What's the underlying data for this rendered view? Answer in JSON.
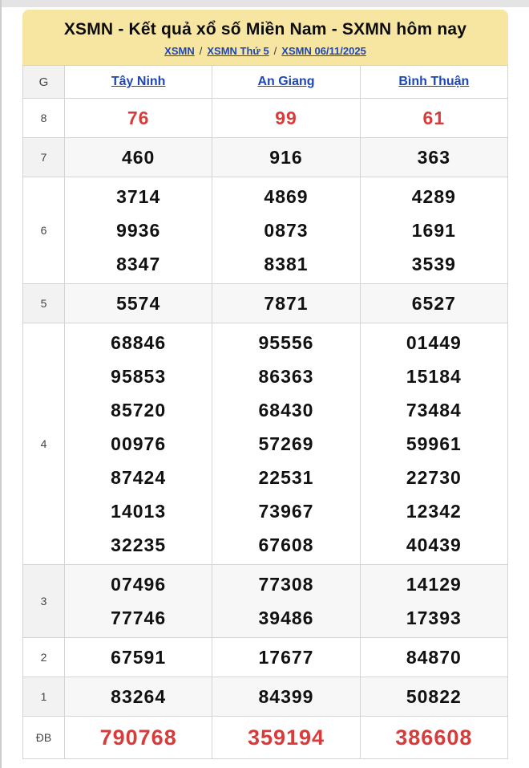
{
  "header": {
    "title": "XSMN - Kết quả xổ số Miền Nam - SXMN hôm nay",
    "breadcrumb": {
      "separator": "/",
      "items": [
        {
          "label": "XSMN"
        },
        {
          "label": "XSMN Thứ 5"
        },
        {
          "label": "XSMN 06/11/2025"
        }
      ]
    }
  },
  "colors": {
    "header_bg": "#f7e6a2",
    "link_blue": "#1e46b4",
    "red": "#d93b3b",
    "border": "#d4d4d4",
    "g_col_bg": "#f2f2f2",
    "row_alt_bg": "#f7f7f7"
  },
  "table": {
    "corner_label": "G",
    "columns": [
      "Tây Ninh",
      "An Giang",
      "Bình Thuận"
    ],
    "rows": [
      {
        "prize": "8",
        "highlight": "red",
        "values": [
          [
            "76"
          ],
          [
            "99"
          ],
          [
            "61"
          ]
        ]
      },
      {
        "prize": "7",
        "values": [
          [
            "460"
          ],
          [
            "916"
          ],
          [
            "363"
          ]
        ]
      },
      {
        "prize": "6",
        "values": [
          [
            "3714",
            "9936",
            "8347"
          ],
          [
            "4869",
            "0873",
            "8381"
          ],
          [
            "4289",
            "1691",
            "3539"
          ]
        ]
      },
      {
        "prize": "5",
        "values": [
          [
            "5574"
          ],
          [
            "7871"
          ],
          [
            "6527"
          ]
        ]
      },
      {
        "prize": "4",
        "values": [
          [
            "68846",
            "95853",
            "85720",
            "00976",
            "87424",
            "14013",
            "32235"
          ],
          [
            "95556",
            "86363",
            "68430",
            "57269",
            "22531",
            "73967",
            "67608"
          ],
          [
            "01449",
            "15184",
            "73484",
            "59961",
            "22730",
            "12342",
            "40439"
          ]
        ]
      },
      {
        "prize": "3",
        "values": [
          [
            "07496",
            "77746"
          ],
          [
            "77308",
            "39486"
          ],
          [
            "14129",
            "17393"
          ]
        ]
      },
      {
        "prize": "2",
        "values": [
          [
            "67591"
          ],
          [
            "17677"
          ],
          [
            "84870"
          ]
        ]
      },
      {
        "prize": "1",
        "values": [
          [
            "83264"
          ],
          [
            "84399"
          ],
          [
            "50822"
          ]
        ]
      },
      {
        "prize": "ĐB",
        "highlight": "red",
        "large": true,
        "values": [
          [
            "790768"
          ],
          [
            "359194"
          ],
          [
            "386608"
          ]
        ]
      }
    ]
  }
}
